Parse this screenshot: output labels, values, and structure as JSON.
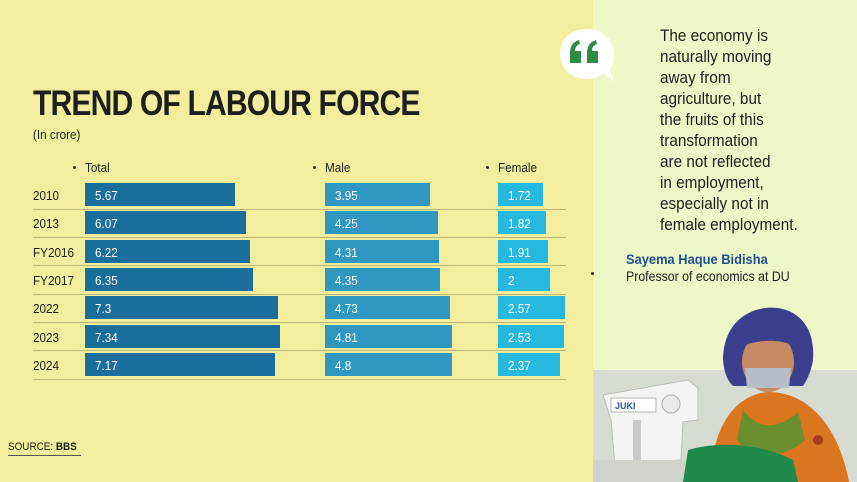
{
  "header": {
    "title": "TREND OF LABOUR FORCE",
    "subtitle": "(In crore)"
  },
  "source": {
    "label": "SOURCE:",
    "value": "BBS"
  },
  "quote": {
    "lines": [
      "The economy is",
      "naturally moving",
      "away from",
      "agriculture, but",
      "the fruits of this",
      "transformation",
      "are not reflected",
      "in employment,",
      "especially not in",
      "female employment."
    ],
    "author": "Sayema Haque Bidisha",
    "role": "Professor of economics at DU"
  },
  "chart_data": {
    "type": "bar",
    "orientation": "horizontal",
    "title": "TREND OF LABOUR FORCE",
    "subtitle": "(In crore)",
    "categories": [
      "2010",
      "2013",
      "FY2016",
      "FY2017",
      "2022",
      "2023",
      "2024"
    ],
    "series": [
      {
        "name": "Total",
        "values": [
          5.67,
          6.07,
          6.22,
          6.35,
          7.3,
          7.34,
          7.17
        ],
        "labels": [
          "5.67",
          "6.07",
          "6.22",
          "6.35",
          "7.3",
          "7.34",
          "7.17"
        ],
        "color": "#1a6e9b"
      },
      {
        "name": "Male",
        "values": [
          3.95,
          4.25,
          4.31,
          4.35,
          4.73,
          4.81,
          4.8
        ],
        "labels": [
          "3.95",
          "4.25",
          "4.31",
          "4.35",
          "4.73",
          "4.81",
          "4.8"
        ],
        "color": "#2f97c1"
      },
      {
        "name": "Female",
        "values": [
          1.72,
          1.82,
          1.91,
          2,
          2.57,
          2.53,
          2.37
        ],
        "labels": [
          "1.72",
          "1.82",
          "1.91",
          "2",
          "2.57",
          "2.53",
          "2.37"
        ],
        "color": "#26b8df"
      }
    ],
    "grid": false,
    "legend": "column headers above each series"
  },
  "colors": {
    "left_background": "#f2ee9e",
    "right_background": "#eef7c8",
    "quote_mark": "#2e8c45",
    "author": "#1f4f90"
  },
  "icons": {
    "quote": "quote-bubble-icon",
    "photo": "garment-worker-sewing-illustration"
  }
}
